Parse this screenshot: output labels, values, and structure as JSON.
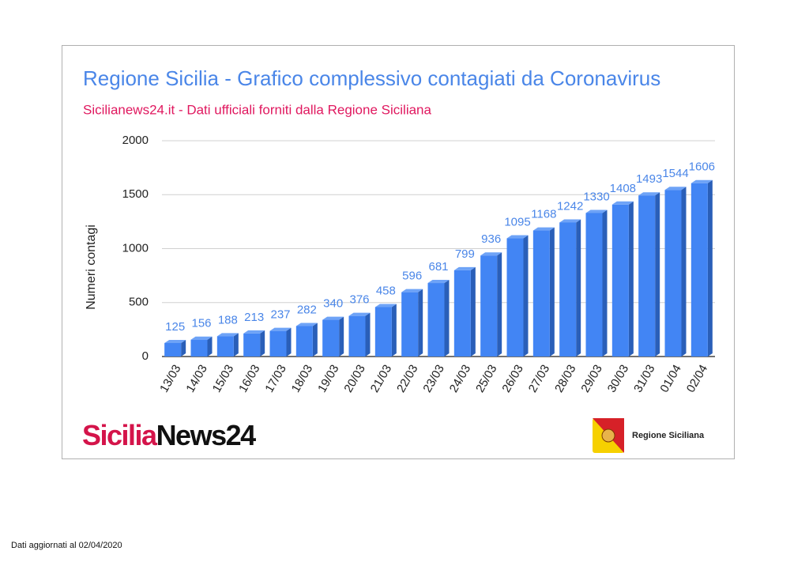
{
  "chart_data": {
    "type": "bar",
    "title": "Regione Sicilia - Grafico complessivo contagiati da Coronavirus",
    "subtitle": "Sicilianews24.it - Dati ufficiali forniti dalla Regione Siciliana",
    "y_label": "Numeri contagi",
    "categories": [
      "13/03",
      "14/03",
      "15/03",
      "16/03",
      "17/03",
      "18/03",
      "19/03",
      "20/03",
      "21/03",
      "22/03",
      "23/03",
      "24/03",
      "25/03",
      "26/03",
      "27/03",
      "28/03",
      "29/03",
      "30/03",
      "31/03",
      "01/04",
      "02/04"
    ],
    "values": [
      125,
      156,
      188,
      213,
      237,
      282,
      340,
      376,
      458,
      596,
      681,
      799,
      936,
      1095,
      1168,
      1242,
      1330,
      1408,
      1493,
      1544,
      1606
    ],
    "color": "#4285f4",
    "ylim": [
      0,
      2000
    ],
    "yticks": [
      0,
      500,
      1000,
      1500,
      2000
    ],
    "grid": true
  },
  "logo": {
    "first": "Sicilia",
    "second": "News24"
  },
  "emblem_label": "Regione Siciliana",
  "footnote": "Dati aggiornati al 02/04/2020"
}
